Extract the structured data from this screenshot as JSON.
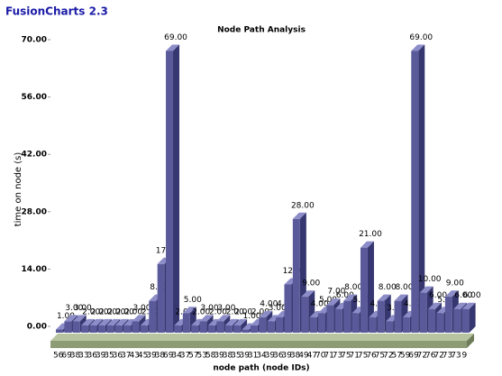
{
  "header": {
    "brand": "FusionCharts 2.3"
  },
  "chart_data": {
    "type": "bar3d",
    "title": "Node Path Analysis",
    "x_label": "node path (node IDs)",
    "y_label": "time on node (s)",
    "categories": [
      "56",
      "69",
      "38",
      "33",
      "36",
      "39",
      "35",
      "36",
      "37",
      "43",
      "45",
      "39",
      "38",
      "69",
      "34",
      "37",
      "57",
      "53",
      "58",
      "39",
      "38",
      "35",
      "39",
      "31",
      "34",
      "39",
      "36",
      "39",
      "38",
      "49",
      "47",
      "70",
      "71",
      "73",
      "75",
      "71",
      "75",
      "76",
      "75",
      "72",
      "57",
      "59",
      "69",
      "72",
      "76",
      "72",
      "73",
      "73",
      "9"
    ],
    "values": [
      1,
      3,
      3,
      2,
      2,
      2,
      2,
      2,
      2,
      3,
      2,
      8,
      17,
      69,
      2,
      5,
      2,
      3,
      2,
      3,
      2,
      2,
      1,
      2,
      4,
      3,
      4,
      12,
      28,
      9,
      4,
      5,
      7,
      6,
      8,
      5,
      21,
      4,
      8,
      3,
      8,
      4,
      69,
      10,
      6,
      5,
      9,
      6,
      6
    ],
    "value_labels": [
      "1.00",
      "3.00",
      "3.00",
      "2.00",
      "2.00",
      "2.00",
      "2.00",
      "2.00",
      "2.00",
      "3.00",
      "2.00",
      "8.00",
      "17.00",
      "69.00",
      "2.00",
      "5.00",
      "2.00",
      "3.00",
      "2.00",
      "3.00",
      "2.00",
      "2.00",
      "1.00",
      "2.00",
      "4.00",
      "3.00",
      "4.00",
      "12.00",
      "28.00",
      "9.00",
      "4.00",
      "5.00",
      "7.00",
      "6.00",
      "8.00",
      "5.00",
      "21.00",
      "4.00",
      "8.00",
      "3.00",
      "8.00",
      "4.00",
      "69.00",
      "10.00",
      "6.00",
      "5.00",
      "9.00",
      "6.00",
      "6.00"
    ],
    "color": "#5a5a9a",
    "ylim": [
      0,
      70
    ],
    "yticks": [
      {
        "value": 0,
        "label": "0.00"
      },
      {
        "value": 14,
        "label": "14.00"
      },
      {
        "value": 28,
        "label": "28.00"
      },
      {
        "value": 42,
        "label": "42.00"
      },
      {
        "value": 56,
        "label": "56.00"
      },
      {
        "value": 70,
        "label": "70.00"
      }
    ]
  }
}
